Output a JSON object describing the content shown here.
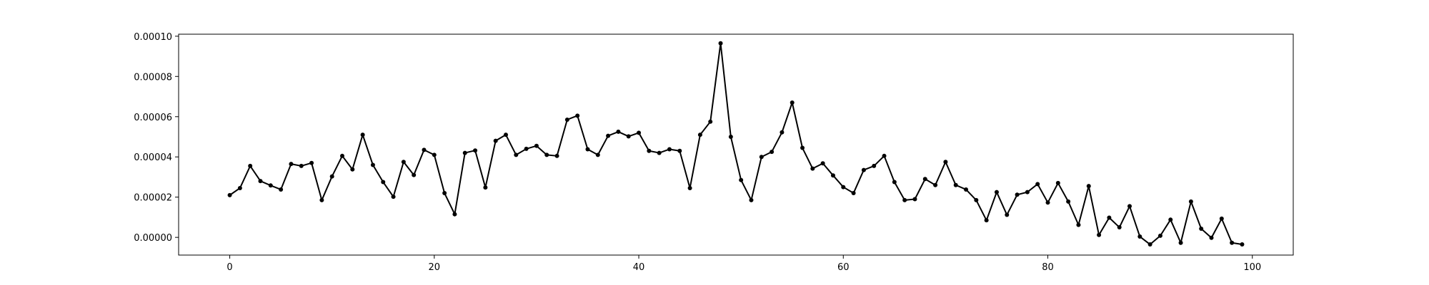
{
  "chart_data": {
    "type": "line",
    "title": "",
    "xlabel": "",
    "ylabel": "",
    "xlim": [
      -5,
      104
    ],
    "ylim": [
      -8.8e-06,
      0.000101
    ],
    "grid": false,
    "legend": "none",
    "x_ticks": [
      0,
      20,
      40,
      60,
      80,
      100
    ],
    "x_tick_labels": [
      "0",
      "20",
      "40",
      "60",
      "80",
      "100"
    ],
    "y_ticks": [
      0.0,
      2e-05,
      4e-05,
      6e-05,
      8e-05,
      0.0001
    ],
    "y_tick_labels": [
      "0.00000",
      "0.00002",
      "0.00004",
      "0.00006",
      "0.00008",
      "0.00010"
    ],
    "line_color": "#000000",
    "marker": "circle",
    "series": [
      {
        "x": [
          0,
          1,
          2,
          3,
          4,
          5,
          6,
          7,
          8,
          9,
          10,
          11,
          12,
          13,
          14,
          15,
          16,
          17,
          18,
          19,
          20,
          21,
          22,
          23,
          24,
          25,
          26,
          27,
          28,
          29,
          30,
          31,
          32,
          33,
          34,
          35,
          36,
          37,
          38,
          39,
          40,
          41,
          42,
          43,
          44,
          45,
          46,
          47,
          48,
          49,
          50,
          51,
          52,
          53,
          54,
          55,
          56,
          57,
          58,
          59,
          60,
          61,
          62,
          63,
          64,
          65,
          66,
          67,
          68,
          69,
          70,
          71,
          72,
          73,
          74,
          75,
          76,
          77,
          78,
          79,
          80,
          81,
          82,
          83,
          84,
          85,
          86,
          87,
          88,
          89,
          90,
          91,
          92,
          93,
          94,
          95,
          96,
          97,
          98,
          99
        ],
        "values": [
          2.1e-05,
          2.45e-05,
          3.55e-05,
          2.8e-05,
          2.58e-05,
          2.38e-05,
          3.65e-05,
          3.55e-05,
          3.7e-05,
          1.85e-05,
          3.03e-05,
          4.05e-05,
          3.38e-05,
          5.1e-05,
          3.6e-05,
          2.75e-05,
          2.02e-05,
          3.75e-05,
          3.1e-05,
          4.35e-05,
          4.1e-05,
          2.2e-05,
          1.15e-05,
          4.2e-05,
          4.32e-05,
          2.48e-05,
          4.8e-05,
          5.1e-05,
          4.1e-05,
          4.4e-05,
          4.55e-05,
          4.1e-05,
          4.05e-05,
          5.85e-05,
          6.05e-05,
          4.38e-05,
          4.1e-05,
          5.05e-05,
          5.25e-05,
          5.02e-05,
          5.2e-05,
          4.3e-05,
          4.2e-05,
          4.38e-05,
          4.3e-05,
          2.45e-05,
          5.1e-05,
          5.75e-05,
          9.65e-05,
          5e-05,
          2.85e-05,
          1.85e-05,
          4e-05,
          4.25e-05,
          5.22e-05,
          6.7e-05,
          4.45e-05,
          3.42e-05,
          3.68e-05,
          3.08e-05,
          2.5e-05,
          2.2e-05,
          3.35e-05,
          3.55e-05,
          4.05e-05,
          2.75e-05,
          1.85e-05,
          1.9e-05,
          2.9e-05,
          2.6e-05,
          3.75e-05,
          2.6e-05,
          2.38e-05,
          1.85e-05,
          8.5e-06,
          2.25e-05,
          1.12e-05,
          2.12e-05,
          2.25e-05,
          2.65e-05,
          1.73e-05,
          2.7e-05,
          1.78e-05,
          6.2e-06,
          2.55e-05,
          1.2e-06,
          9.8e-06,
          5e-06,
          1.55e-05,
          4e-07,
          -3.5e-06,
          8e-07,
          8.8e-06,
          -2.7e-06,
          1.78e-05,
          4.3e-06,
          -2e-07,
          9.3e-06,
          -2.7e-06,
          -3.5e-06
        ]
      }
    ]
  }
}
